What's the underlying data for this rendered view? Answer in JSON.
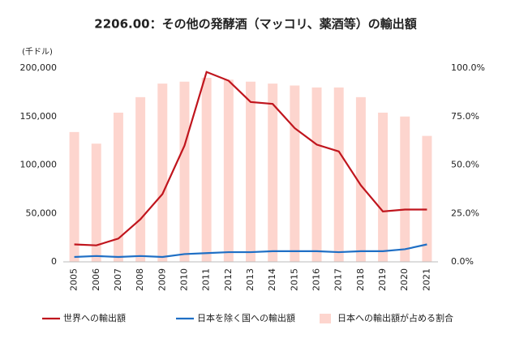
{
  "chart_data": {
    "type": "combo",
    "title": "2206.00：その他の発酵酒（マッコリ、薬酒等）の輸出額",
    "y_unit_label": "(千ドル)",
    "categories": [
      "2005",
      "2006",
      "2007",
      "2008",
      "2009",
      "2010",
      "2011",
      "2012",
      "2013",
      "2014",
      "2015",
      "2016",
      "2017",
      "2018",
      "2019",
      "2020",
      "2021"
    ],
    "series": [
      {
        "name": "日本への輸出額が占める割合",
        "kind": "bar",
        "axis": "y2",
        "color": "#fdd5ce",
        "values": [
          67,
          61,
          77,
          85,
          92,
          93,
          95,
          94,
          93,
          92,
          91,
          90,
          90,
          85,
          77,
          75,
          65
        ]
      },
      {
        "name": "世界への輸出額",
        "kind": "line",
        "color": "#c0151d",
        "values": [
          18000,
          17000,
          24000,
          44000,
          70000,
          120000,
          196000,
          187000,
          165000,
          163000,
          138000,
          121000,
          114000,
          79000,
          52000,
          54000,
          54000
        ]
      },
      {
        "name": "日本を除く国への輸出額",
        "kind": "line",
        "color": "#1f6fc5",
        "values": [
          5000,
          6000,
          5000,
          6000,
          5000,
          8000,
          9000,
          10000,
          10000,
          11000,
          11000,
          11000,
          10000,
          11000,
          11000,
          13000,
          18000
        ]
      }
    ],
    "ylim": [
      0,
      200000
    ],
    "yticks": [
      0,
      {
        "value": 50000,
        "label": "50,000"
      },
      {
        "value": 100000,
        "label": "100,000"
      },
      {
        "value": 150000,
        "label": "150,000"
      },
      {
        "value": 200000,
        "label": "200,000"
      }
    ],
    "y2lim": [
      0,
      100
    ],
    "y2ticks": [
      {
        "value": 0,
        "label": "0.0%"
      },
      {
        "value": 25,
        "label": "25.0%"
      },
      {
        "value": 50,
        "label": "50.0%"
      },
      {
        "value": 75,
        "label": "75.0%"
      },
      {
        "value": 100,
        "label": "100.0%"
      }
    ],
    "grid": false
  }
}
